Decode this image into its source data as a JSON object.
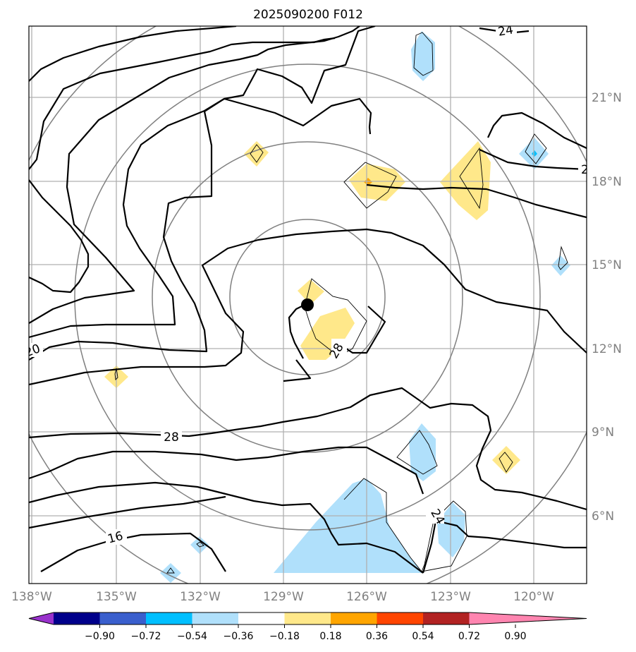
{
  "title": "2025090200 F012",
  "longitude_labels": [
    "138°W",
    "135°W",
    "132°W",
    "129°W",
    "126°W",
    "123°W",
    "120°W"
  ],
  "latitude_labels": [
    "6°N",
    "9°N",
    "12°N",
    "15°N",
    "18°N",
    "21°N"
  ],
  "contour_labels": {
    "c24_top": "24",
    "c20_right": "2",
    "c20_left": "20",
    "c28_center": "28",
    "c28_left": "28",
    "c16": "16",
    "c24_bottom": "24"
  },
  "colorbar": {
    "levels": [
      "−0.90",
      "−0.72",
      "−0.54",
      "−0.36",
      "−0.18",
      "0.18",
      "0.36",
      "0.54",
      "0.72",
      "0.90"
    ],
    "colors": [
      "#9932cc",
      "#00008b",
      "#3a5fcd",
      "#00bfff",
      "#b0e0fb",
      "#ffffff",
      "#ffe88a",
      "#ffa500",
      "#ff4500",
      "#b22222",
      "#ff85b0"
    ]
  },
  "colors": {
    "positive_shading": "#ffe88a",
    "negative_shading": "#b0e0fb",
    "contour": "#000000",
    "range_rings": "#808080",
    "grid": "#b0b0b0"
  }
}
